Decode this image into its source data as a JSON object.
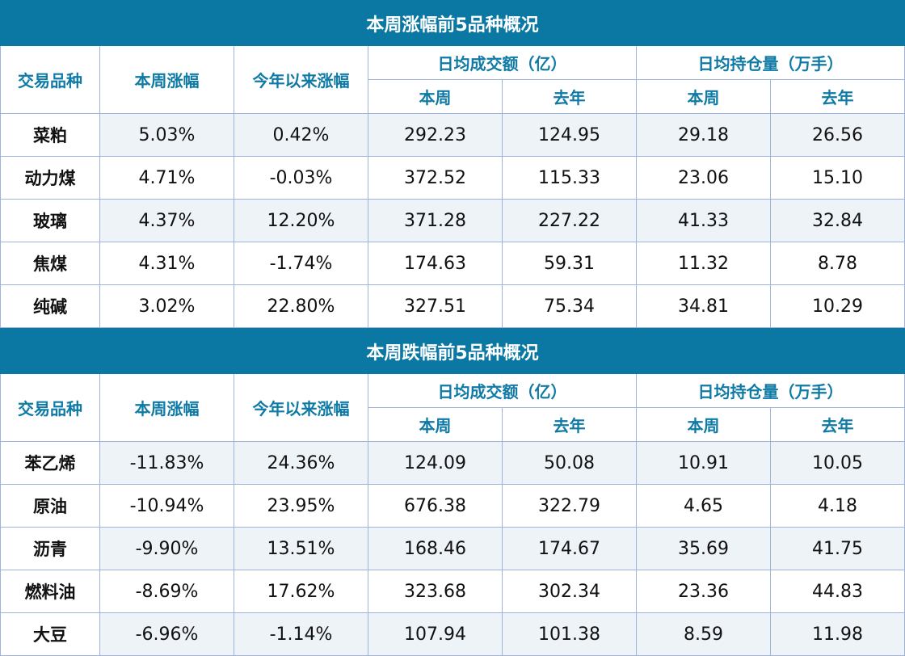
{
  "headers": {
    "variety": "交易品种",
    "week_change": "本周涨幅",
    "ytd_change": "今年以来涨幅",
    "avg_turnover": "日均成交额（亿）",
    "avg_oi": "日均持仓量（万手）",
    "this_week": "本周",
    "last_year": "去年"
  },
  "tables": [
    {
      "title": "本周涨幅前5品种概况",
      "rows": [
        [
          "菜粕",
          "5.03%",
          "0.42%",
          "292.23",
          "124.95",
          "29.18",
          "26.56"
        ],
        [
          "动力煤",
          "4.71%",
          "-0.03%",
          "372.52",
          "115.33",
          "23.06",
          "15.10"
        ],
        [
          "玻璃",
          "4.37%",
          "12.20%",
          "371.28",
          "227.22",
          "41.33",
          "32.84"
        ],
        [
          "焦煤",
          "4.31%",
          "-1.74%",
          "174.63",
          "59.31",
          "11.32",
          "8.78"
        ],
        [
          "纯碱",
          "3.02%",
          "22.80%",
          "327.51",
          "75.34",
          "34.81",
          "10.29"
        ]
      ]
    },
    {
      "title": "本周跌幅前5品种概况",
      "rows": [
        [
          "苯乙烯",
          "-11.83%",
          "24.36%",
          "124.09",
          "50.08",
          "10.91",
          "10.05"
        ],
        [
          "原油",
          "-10.94%",
          "23.95%",
          "676.38",
          "322.79",
          "4.65",
          "4.18"
        ],
        [
          "沥青",
          "-9.90%",
          "13.51%",
          "168.46",
          "174.67",
          "35.69",
          "41.75"
        ],
        [
          "燃料油",
          "-8.69%",
          "17.62%",
          "323.68",
          "302.34",
          "23.36",
          "44.83"
        ],
        [
          "大豆",
          "-6.96%",
          "-1.14%",
          "107.94",
          "101.38",
          "8.59",
          "11.98"
        ]
      ]
    }
  ],
  "colors": {
    "header_bg": "#0a78a3",
    "header_text": "#0e7aa5",
    "border": "#9fb3df",
    "shade": "#eef3f8"
  }
}
